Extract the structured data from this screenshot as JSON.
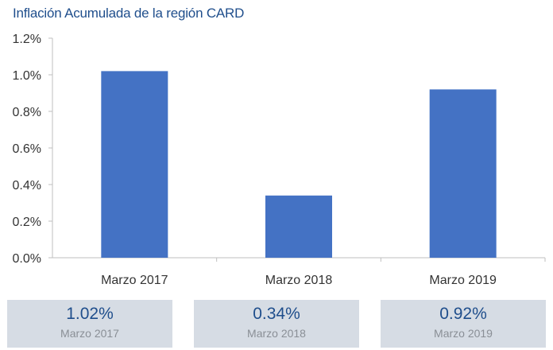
{
  "chart_data": {
    "type": "bar",
    "title": "Inflación Acumulada de la región CARD",
    "categories": [
      "Marzo 2017",
      "Marzo 2018",
      "Marzo 2019"
    ],
    "values": [
      1.02,
      0.34,
      0.92
    ],
    "unit": "%",
    "ylim": [
      0,
      1.2
    ],
    "yticks": [
      "0.0%",
      "0.2%",
      "0.4%",
      "0.6%",
      "0.8%",
      "1.0%",
      "1.2%"
    ],
    "bar_color": "#4472c4",
    "grid": false
  },
  "cards": [
    {
      "value": "1.02%",
      "label": "Marzo 2017"
    },
    {
      "value": "0.34%",
      "label": "Marzo 2018"
    },
    {
      "value": "0.92%",
      "label": "Marzo 2019"
    }
  ]
}
